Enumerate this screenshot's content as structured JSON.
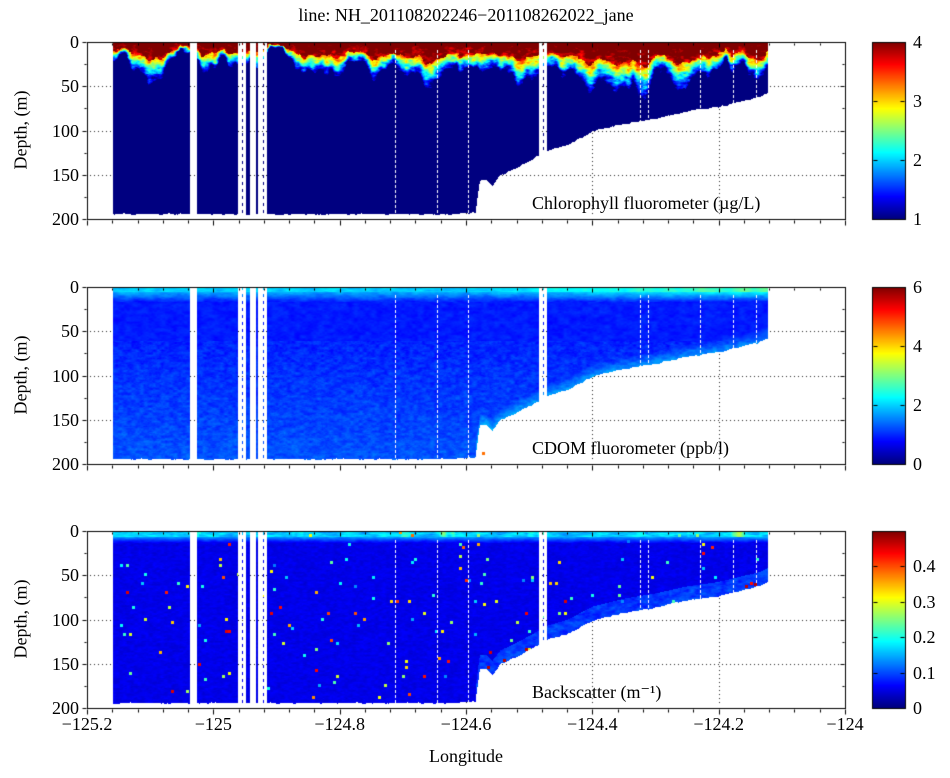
{
  "figure": {
    "title": "line: NH_201108202246−201108262022_jane",
    "x_label": "Longitude",
    "y_label": "Depth, (m)"
  },
  "chart_data": {
    "type": "heatmap",
    "colormap": "jet",
    "colors": {
      "background": "#ffffff",
      "axis": "#000000",
      "grid": "#000000",
      "deep_blue": "#00008f",
      "surface_red": "#8f0000"
    },
    "x_axis": {
      "label": "Longitude",
      "range": [
        -125.2,
        -124.0
      ],
      "tick_values": [
        -125.2,
        -125.0,
        -124.8,
        -124.6,
        -124.4,
        -124.2,
        -124.0
      ],
      "tick_labels": [
        "−125.2",
        "−125",
        "−124.8",
        "−124.6",
        "−124.4",
        "−124.2",
        "−124"
      ],
      "minor_step": 0.04,
      "grid": true
    },
    "y_axis": {
      "label": "Depth, (m)",
      "range": [
        0,
        200
      ],
      "tick_values": [
        0,
        50,
        100,
        150,
        200
      ],
      "tick_labels": [
        "0",
        "50",
        "100",
        "150",
        "200"
      ],
      "minor_step": 25,
      "reversed": true,
      "grid": true
    },
    "panels": [
      {
        "name": "chlorophyll",
        "label": "Chlorophyll fluorometer (µg/L)",
        "caxis": [
          1,
          4
        ],
        "colorbar_tick_values": [
          4,
          3,
          2,
          1
        ],
        "colorbar_tick_labels": [
          "4",
          "3",
          "2",
          "1"
        ],
        "render": {
          "deep": 0.96,
          "surfMax": 4.35,
          "thBase": 13,
          "thVar": 14,
          "transTop": 3.3,
          "transBot": 0.95
        }
      },
      {
        "name": "cdom",
        "label": "CDOM fluorometer (ppb/l)",
        "caxis": [
          0,
          6
        ],
        "colorbar_tick_values": [
          6,
          4,
          2,
          0
        ],
        "colorbar_tick_labels": [
          "6",
          "4",
          "2",
          "0"
        ],
        "render": {
          "surf": 1.85,
          "eastBoost": 2.0,
          "mid": 0.9,
          "deepBase": 0.95,
          "deepGrad": 0.0022,
          "bottomEnhance": 0.6,
          "anomaly": [
            -124.573,
            188,
            4.6
          ]
        }
      },
      {
        "name": "backscatter",
        "label": "Backscatter (m⁻¹)",
        "caxis": [
          0,
          0.5
        ],
        "colorbar_tick_values": [
          0.4,
          0.3,
          0.2,
          0.1,
          0
        ],
        "colorbar_tick_labels": [
          "0.4",
          "0.3",
          "0.2",
          "0.1",
          "0"
        ],
        "render": {
          "surf": 0.155,
          "deep": 0.052,
          "slope": 0.085,
          "speckleDensity": 0.014,
          "floorSpotValue": 0.47,
          "floorSpots": [
            -124.565,
            -124.54,
            -124.505,
            -124.157,
            -124.142
          ]
        }
      }
    ],
    "data_extent": {
      "lon_min": -125.159,
      "lon_max": -124.122,
      "min_depth": 0,
      "max_depth": 195
    },
    "bathymetry": [
      [
        -125.16,
        194
      ],
      [
        -124.62,
        194
      ],
      [
        -124.585,
        192
      ],
      [
        -124.578,
        156
      ],
      [
        -124.568,
        155
      ],
      [
        -124.558,
        162
      ],
      [
        -124.545,
        150
      ],
      [
        -124.52,
        142
      ],
      [
        -124.49,
        130
      ],
      [
        -124.47,
        122
      ],
      [
        -124.44,
        116
      ],
      [
        -124.4,
        101
      ],
      [
        -124.35,
        92
      ],
      [
        -124.3,
        86
      ],
      [
        -124.25,
        78
      ],
      [
        -124.2,
        73
      ],
      [
        -124.16,
        66
      ],
      [
        -124.135,
        62
      ],
      [
        -124.122,
        57
      ]
    ],
    "gaps": [
      {
        "from": -125.037,
        "to": -125.026,
        "dotted": false
      },
      {
        "from": -124.961,
        "to": -124.948,
        "dotted": true
      },
      {
        "from": -124.942,
        "to": -124.933,
        "dotted": false
      },
      {
        "from": -124.929,
        "to": -124.915,
        "dotted": true
      },
      {
        "from": -124.484,
        "to": -124.472,
        "dotted": true
      }
    ],
    "dropout_columns": [
      -124.712,
      -124.646,
      -124.597,
      -124.325,
      -124.312,
      -124.23,
      -124.177,
      -124.141
    ]
  }
}
